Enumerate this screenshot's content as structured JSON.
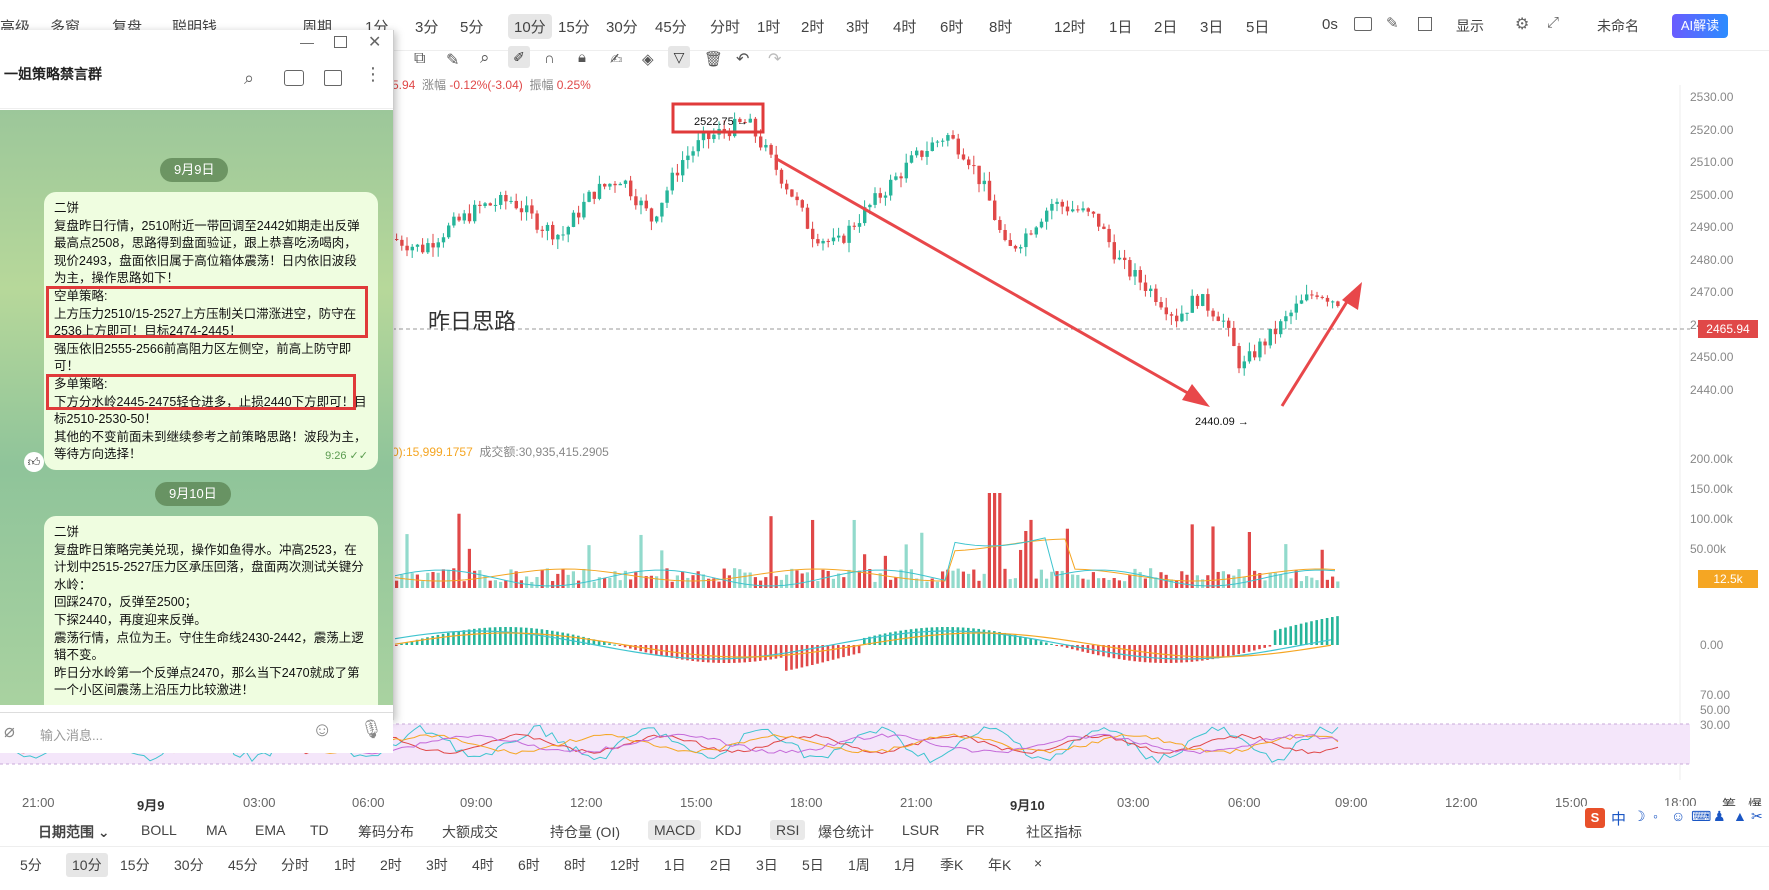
{
  "topbar": {
    "left_items": [
      "高级",
      "多窗",
      "复盘",
      "聪明钱"
    ],
    "period_label": "周期",
    "intervals": [
      "1分",
      "3分",
      "5分",
      "10分",
      "15分",
      "30分",
      "45分",
      "分时",
      "1时",
      "2时",
      "3时",
      "4时",
      "6时",
      "8时",
      "12时",
      "1日",
      "2日",
      "3日",
      "5日"
    ],
    "active_interval": "10分",
    "right_items": [
      "0s",
      "显示",
      "未命名"
    ],
    "ai_label": "AI解读"
  },
  "price_info": {
    "prefix": "5.94",
    "change_label": "涨幅",
    "change_value": "-0.12%(-3.04)",
    "amp_label": "振幅",
    "amp_value": "0.25%"
  },
  "chart": {
    "y_ticks": [
      "2530.00",
      "2520.00",
      "2510.00",
      "2500.00",
      "2490.00",
      "2480.00",
      "2470.00",
      "2460.00",
      "2450.00",
      "2440.00"
    ],
    "vol_ticks": [
      "200.00k",
      "150.00k",
      "100.00k",
      "50.00k"
    ],
    "macd_tick": "0.00",
    "rsi_ticks": [
      "70.00",
      "50.00",
      "30.00"
    ],
    "current_price": "2465.94",
    "current_vol": "12.5k",
    "high_label": "2522.75",
    "low_label": "2440.09",
    "annotation": "昨日思路",
    "vol_info_value": "0):15,999.1757",
    "vol_info_amount": "成交额:30,935,415.2905",
    "x_labels": [
      "21:00",
      "9月9",
      "03:00",
      "06:00",
      "09:00",
      "12:00",
      "15:00",
      "18:00",
      "21:00",
      "9月10",
      "03:00",
      "06:00",
      "09:00",
      "12:00",
      "15:00",
      "18:00"
    ],
    "corner_labels": [
      "筹",
      "爆"
    ]
  },
  "indicators": {
    "range_label": "日期范围",
    "items": [
      "BOLL",
      "MA",
      "EMA",
      "TD",
      "筹码分布",
      "大额成交",
      "持仓量 (OI)",
      "MACD",
      "KDJ",
      "RSI",
      "爆仓统计",
      "LSUR",
      "FR",
      "社区指标"
    ],
    "selected": [
      "MACD",
      "RSI"
    ]
  },
  "period_bar": {
    "items": [
      "5分",
      "10分",
      "15分",
      "30分",
      "45分",
      "分时",
      "1时",
      "2时",
      "3时",
      "4时",
      "6时",
      "8时",
      "12时",
      "1日",
      "2日",
      "3日",
      "5日",
      "1周",
      "1月",
      "季K",
      "年K",
      "×"
    ],
    "selected": "10分"
  },
  "ime": {
    "label": "中"
  },
  "chat": {
    "title": "一姐策略禁言群",
    "input_placeholder": "输入消息...",
    "date1": "9月9日",
    "date2": "9月10日",
    "msg1": {
      "sender": "二饼",
      "lines": [
        "复盘昨日行情，2510附近一带回调至2442如期走出反弹最高点2508，思路得到盘面验证，跟上恭喜吃汤喝肉，现价2493，盘面依旧属于高位箱体震荡！日内依旧波段为主，操作思路如下！",
        "空单策略:",
        "上方压力2510/15-2527上方压制关口滞涨进空，防守在2536上方即可！目标2474-2445！",
        "强压依旧2555-2566前高阻力区左侧空，前高上防守即可！",
        "多单策略:",
        "下方分水岭2445-2475轻仓进多，止损2440下方即可！目标2510-2530-50！",
        "其他的不变前面未到继续参考之前策略思路！波段为主，等待方向选择！"
      ],
      "time": "9:26"
    },
    "msg2": {
      "sender": "二饼",
      "lines": [
        "复盘昨日策略完美兑现，操作如鱼得水。冲高2523，在计划中2515-2527压力区承压回落，盘面两次测试关键分水岭：",
        "回踩2470，反弹至2500；",
        "下探2440，再度迎来反弹。",
        "震荡行情，点位为王。守住生命线2430-2442，震荡上逻辑不变。",
        "昨日分水岭第一个反弹点2470，那么当下2470就成了第一个小区间震荡上沿压力比较激进！"
      ]
    }
  },
  "colors": {
    "up": "#26b59a",
    "down": "#e04848",
    "price_tag": "#e04848",
    "vol_tag": "#f5a623",
    "accent": "#2b8cff"
  }
}
